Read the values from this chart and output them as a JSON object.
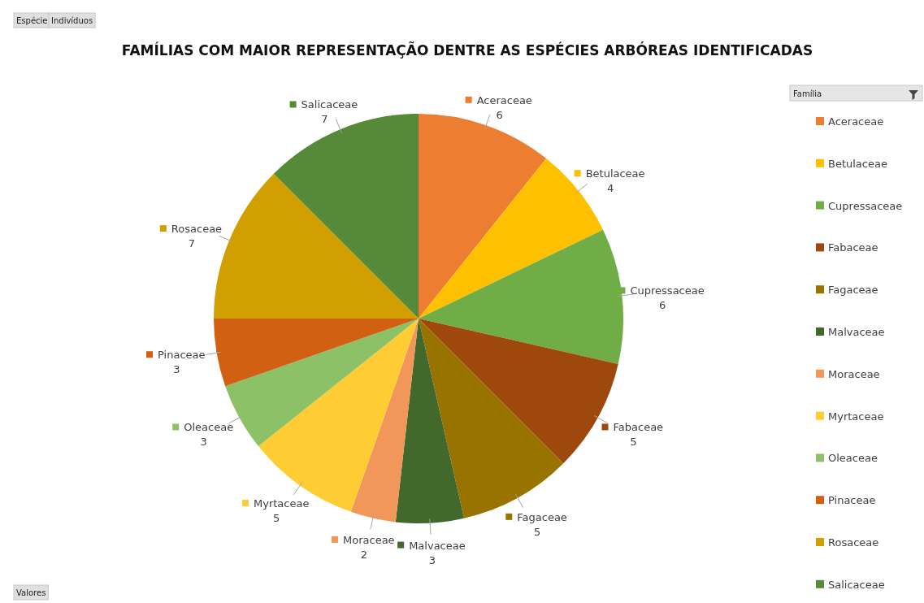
{
  "chart_data": {
    "type": "pie",
    "title": "FAMÍLIAS COM MAIOR REPRESENTAÇÃO DENTRE AS ESPÉCIES ARBÓREAS IDENTIFICADAS",
    "categories": [
      "Aceraceae",
      "Betulaceae",
      "Cupressaceae",
      "Fabaceae",
      "Fagaceae",
      "Malvaceae",
      "Moraceae",
      "Myrtaceae",
      "Oleaceae",
      "Pinaceae",
      "Rosaceae",
      "Salicaceae"
    ],
    "values": [
      6,
      4,
      6,
      5,
      5,
      3,
      2,
      5,
      3,
      3,
      7,
      7
    ],
    "colors": [
      "#ed7d31",
      "#ffc000",
      "#70ad47",
      "#9e480e",
      "#997300",
      "#43682b",
      "#f1975a",
      "#ffcd33",
      "#8cc168",
      "#d26012",
      "#d19f00",
      "#578a38"
    ],
    "data_labels": true,
    "legend": "right",
    "legend_title": "Família",
    "annotations": [
      "Espécie",
      "Indivíduos",
      "Valores"
    ]
  }
}
